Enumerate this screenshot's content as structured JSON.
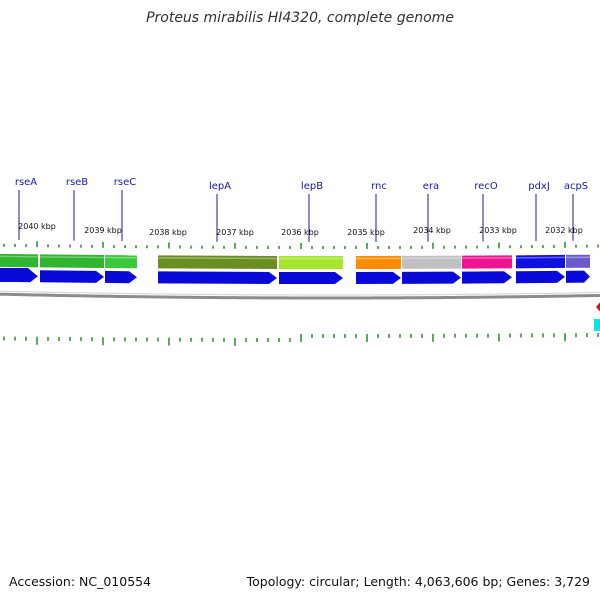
{
  "title": "Proteus mirabilis HI4320, complete genome",
  "accession": "Accession: NC_010554",
  "summary": "Topology: circular; Length: 4,063,606 bp; Genes: 3,729",
  "colors": {
    "cds_arrow": "#0a0ad8",
    "backbone": "#8c8c8c",
    "tick": "#2a8a2a",
    "label": "#1a1aa0"
  },
  "genes": [
    {
      "name": "rseA",
      "cog_color": "#2fb52f"
    },
    {
      "name": "rseB",
      "cog_color": "#2fb52f"
    },
    {
      "name": "rseC",
      "cog_color": "#3cc83c"
    },
    {
      "name": "lepA",
      "cog_color": "#6b8e23"
    },
    {
      "name": "lepB",
      "cog_color": "#a6e62e"
    },
    {
      "name": "rnc",
      "cog_color": "#ff8c00"
    },
    {
      "name": "era",
      "cog_color": "#c0c0c0"
    },
    {
      "name": "recO",
      "cog_color": "#ee1493"
    },
    {
      "name": "pdxJ",
      "cog_color": "#1010e0"
    },
    {
      "name": "acpS",
      "cog_color": "#6a5acd"
    }
  ],
  "scale": [
    "2040 kbp",
    "2039 kbp",
    "2038 kbp",
    "2037 kbp",
    "2036 kbp",
    "2035 kbp",
    "2034 kbp",
    "2033 kbp",
    "2032 kbp"
  ]
}
